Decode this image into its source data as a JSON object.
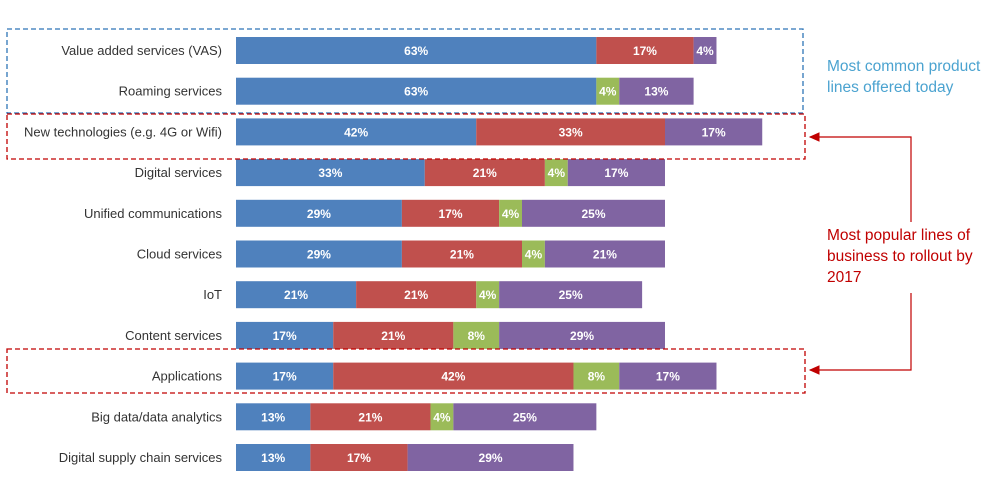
{
  "chart_data": {
    "type": "bar",
    "orientation": "horizontal",
    "stacked": true,
    "categories": [
      "Value added services (VAS)",
      "Roaming services",
      "New technologies (e.g. 4G or Wifi)",
      "Digital services",
      "Unified communications",
      "Cloud services",
      "IoT",
      "Content services",
      "Applications",
      "Big data/data analytics",
      "Digital supply chain services"
    ],
    "series": [
      {
        "color": "#4f81bd",
        "values": [
          63,
          63,
          42,
          33,
          29,
          29,
          21,
          17,
          17,
          13,
          13
        ]
      },
      {
        "color": "#c0504d",
        "values": [
          17,
          0,
          33,
          21,
          17,
          21,
          21,
          21,
          42,
          21,
          17
        ]
      },
      {
        "color": "#9bbb59",
        "values": [
          0,
          4,
          0,
          4,
          4,
          4,
          4,
          8,
          8,
          4,
          0
        ]
      },
      {
        "color": "#8064a2",
        "values": [
          4,
          13,
          17,
          17,
          25,
          21,
          25,
          29,
          17,
          25,
          29
        ]
      }
    ],
    "value_suffix": "%",
    "legend": "none",
    "grid": false
  },
  "annotations": {
    "current_lines": [
      "Most common product",
      "lines offered today"
    ],
    "rollout_lines": [
      "Most popular lines of",
      "business to rollout by",
      "2017"
    ],
    "current_color": "#4ba3d0",
    "rollout_color": "#c00000"
  }
}
